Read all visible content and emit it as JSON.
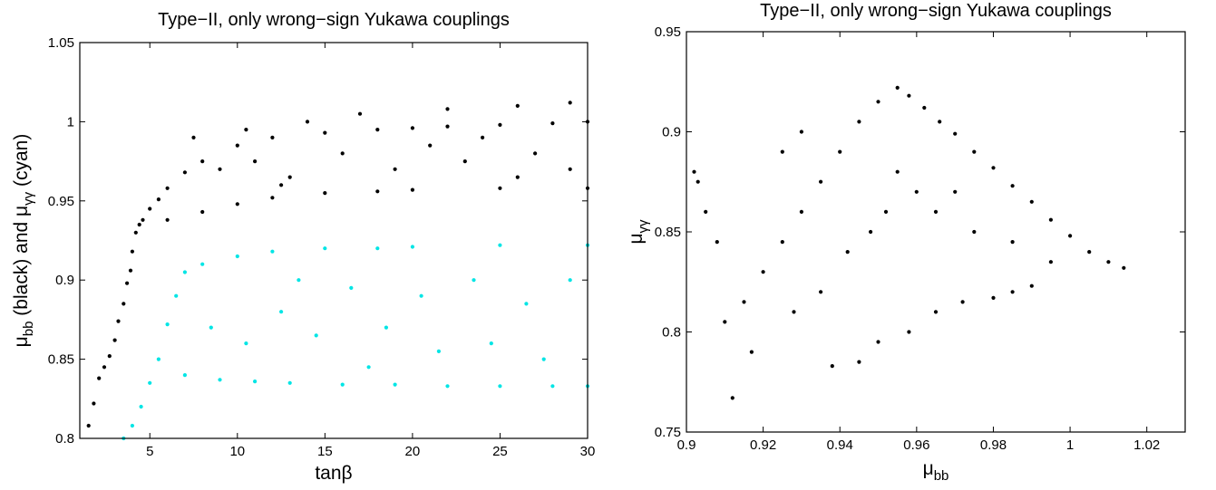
{
  "chart_data": [
    {
      "type": "scatter",
      "title": "Type−II, only wrong−sign Yukawa couplings",
      "xlabel": {
        "base": "tan",
        "greek": "β"
      },
      "ylabel": {
        "mu": "μ",
        "sub1": "bb",
        "mid": " (black) and ",
        "mu2": "μ",
        "sub2": "γγ",
        "tail": " (cyan)"
      },
      "xlim": [
        1,
        30
      ],
      "ylim": [
        0.8,
        1.05
      ],
      "xticks": [
        5,
        10,
        15,
        20,
        25,
        30
      ],
      "xtick_labels": [
        "5",
        "10",
        "15",
        "20",
        "25",
        "30"
      ],
      "yticks": [
        0.8,
        0.85,
        0.9,
        0.95,
        1.0,
        1.05
      ],
      "ytick_labels": [
        "0.8",
        "0.85",
        "0.9",
        "0.95",
        "1",
        "1.05"
      ],
      "grid": false,
      "series": [
        {
          "color": "#000000",
          "values": [
            [
              1.5,
              0.808
            ],
            [
              1.8,
              0.822
            ],
            [
              2.1,
              0.838
            ],
            [
              2.4,
              0.845
            ],
            [
              2.7,
              0.852
            ],
            [
              3.0,
              0.862
            ],
            [
              3.2,
              0.874
            ],
            [
              3.5,
              0.885
            ],
            [
              3.7,
              0.898
            ],
            [
              3.9,
              0.906
            ],
            [
              4.0,
              0.918
            ],
            [
              4.2,
              0.93
            ],
            [
              4.4,
              0.935
            ],
            [
              4.6,
              0.938
            ],
            [
              5.0,
              0.945
            ],
            [
              5.5,
              0.951
            ],
            [
              6.0,
              0.958
            ],
            [
              7.0,
              0.968
            ],
            [
              8.0,
              0.975
            ],
            [
              10,
              0.985
            ],
            [
              12,
              0.99
            ],
            [
              15,
              0.993
            ],
            [
              18,
              0.995
            ],
            [
              20,
              0.996
            ],
            [
              22,
              0.997
            ],
            [
              25,
              0.998
            ],
            [
              28,
              0.999
            ],
            [
              30,
              1.0
            ],
            [
              6.0,
              0.938
            ],
            [
              8.0,
              0.943
            ],
            [
              10,
              0.948
            ],
            [
              12,
              0.952
            ],
            [
              15,
              0.955
            ],
            [
              18,
              0.956
            ],
            [
              20,
              0.957
            ],
            [
              25,
              0.958
            ],
            [
              30,
              0.958
            ],
            [
              9,
              0.97
            ],
            [
              11,
              0.975
            ],
            [
              13,
              0.965
            ],
            [
              16,
              0.98
            ],
            [
              19,
              0.97
            ],
            [
              21,
              0.985
            ],
            [
              23,
              0.975
            ],
            [
              24,
              0.99
            ],
            [
              26,
              0.965
            ],
            [
              27,
              0.98
            ],
            [
              29,
              0.97
            ],
            [
              14,
              1.0
            ],
            [
              17,
              1.005
            ],
            [
              22,
              1.008
            ],
            [
              26,
              1.01
            ],
            [
              29,
              1.012
            ],
            [
              7.5,
              0.99
            ],
            [
              10.5,
              0.995
            ],
            [
              12.5,
              0.96
            ]
          ]
        },
        {
          "color": "#00e5e5",
          "values": [
            [
              3.5,
              0.8
            ],
            [
              4.0,
              0.808
            ],
            [
              4.5,
              0.82
            ],
            [
              5.0,
              0.835
            ],
            [
              5.5,
              0.85
            ],
            [
              6.0,
              0.872
            ],
            [
              6.5,
              0.89
            ],
            [
              7.0,
              0.905
            ],
            [
              8.0,
              0.91
            ],
            [
              10,
              0.915
            ],
            [
              12,
              0.918
            ],
            [
              15,
              0.92
            ],
            [
              18,
              0.92
            ],
            [
              20,
              0.921
            ],
            [
              25,
              0.922
            ],
            [
              30,
              0.922
            ],
            [
              7,
              0.84
            ],
            [
              9,
              0.837
            ],
            [
              11,
              0.836
            ],
            [
              13,
              0.835
            ],
            [
              16,
              0.834
            ],
            [
              19,
              0.834
            ],
            [
              22,
              0.833
            ],
            [
              25,
              0.833
            ],
            [
              28,
              0.833
            ],
            [
              30,
              0.833
            ],
            [
              8.5,
              0.87
            ],
            [
              10.5,
              0.86
            ],
            [
              12.5,
              0.88
            ],
            [
              14.5,
              0.865
            ],
            [
              16.5,
              0.895
            ],
            [
              18.5,
              0.87
            ],
            [
              20.5,
              0.89
            ],
            [
              21.5,
              0.855
            ],
            [
              23.5,
              0.9
            ],
            [
              24.5,
              0.86
            ],
            [
              26.5,
              0.885
            ],
            [
              27.5,
              0.85
            ],
            [
              29,
              0.9
            ],
            [
              17.5,
              0.845
            ],
            [
              13.5,
              0.9
            ]
          ]
        }
      ]
    },
    {
      "type": "scatter",
      "title": "Type−II, only wrong−sign Yukawa couplings",
      "xlabel": {
        "mu": "μ",
        "sub": "bb"
      },
      "ylabel": {
        "mu": "μ",
        "sub": "γγ"
      },
      "xlim": [
        0.9,
        1.03
      ],
      "ylim": [
        0.75,
        0.95
      ],
      "xticks": [
        0.9,
        0.92,
        0.94,
        0.96,
        0.98,
        1.0,
        1.02
      ],
      "xtick_labels": [
        "0.9",
        "0.92",
        "0.94",
        "0.96",
        "0.98",
        "1",
        "1.02"
      ],
      "yticks": [
        0.75,
        0.8,
        0.85,
        0.9,
        0.95
      ],
      "ytick_labels": [
        "0.75",
        "0.8",
        "0.85",
        "0.9",
        "0.95"
      ],
      "grid": false,
      "series": [
        {
          "color": "#000000",
          "values": [
            [
              0.955,
              0.922
            ],
            [
              0.958,
              0.918
            ],
            [
              0.962,
              0.912
            ],
            [
              0.966,
              0.905
            ],
            [
              0.97,
              0.899
            ],
            [
              0.975,
              0.89
            ],
            [
              0.98,
              0.882
            ],
            [
              0.985,
              0.873
            ],
            [
              0.99,
              0.865
            ],
            [
              0.995,
              0.856
            ],
            [
              1.0,
              0.848
            ],
            [
              1.005,
              0.84
            ],
            [
              1.01,
              0.835
            ],
            [
              1.014,
              0.832
            ],
            [
              0.95,
              0.915
            ],
            [
              0.945,
              0.905
            ],
            [
              0.94,
              0.89
            ],
            [
              0.935,
              0.875
            ],
            [
              0.93,
              0.86
            ],
            [
              0.925,
              0.845
            ],
            [
              0.92,
              0.83
            ],
            [
              0.915,
              0.815
            ],
            [
              0.91,
              0.805
            ],
            [
              0.912,
              0.767
            ],
            [
              0.905,
              0.86
            ],
            [
              0.903,
              0.875
            ],
            [
              0.902,
              0.88
            ],
            [
              0.908,
              0.845
            ],
            [
              0.917,
              0.79
            ],
            [
              0.938,
              0.783
            ],
            [
              0.945,
              0.785
            ],
            [
              0.95,
              0.795
            ],
            [
              0.958,
              0.8
            ],
            [
              0.965,
              0.81
            ],
            [
              0.972,
              0.815
            ],
            [
              0.98,
              0.817
            ],
            [
              0.985,
              0.82
            ],
            [
              0.99,
              0.823
            ],
            [
              0.975,
              0.85
            ],
            [
              0.965,
              0.86
            ],
            [
              0.96,
              0.87
            ],
            [
              0.955,
              0.88
            ],
            [
              0.97,
              0.87
            ],
            [
              0.985,
              0.845
            ],
            [
              0.995,
              0.835
            ],
            [
              0.93,
              0.9
            ],
            [
              0.925,
              0.89
            ],
            [
              0.928,
              0.81
            ],
            [
              0.935,
              0.82
            ],
            [
              0.942,
              0.84
            ],
            [
              0.948,
              0.85
            ],
            [
              0.952,
              0.86
            ]
          ]
        }
      ]
    }
  ]
}
